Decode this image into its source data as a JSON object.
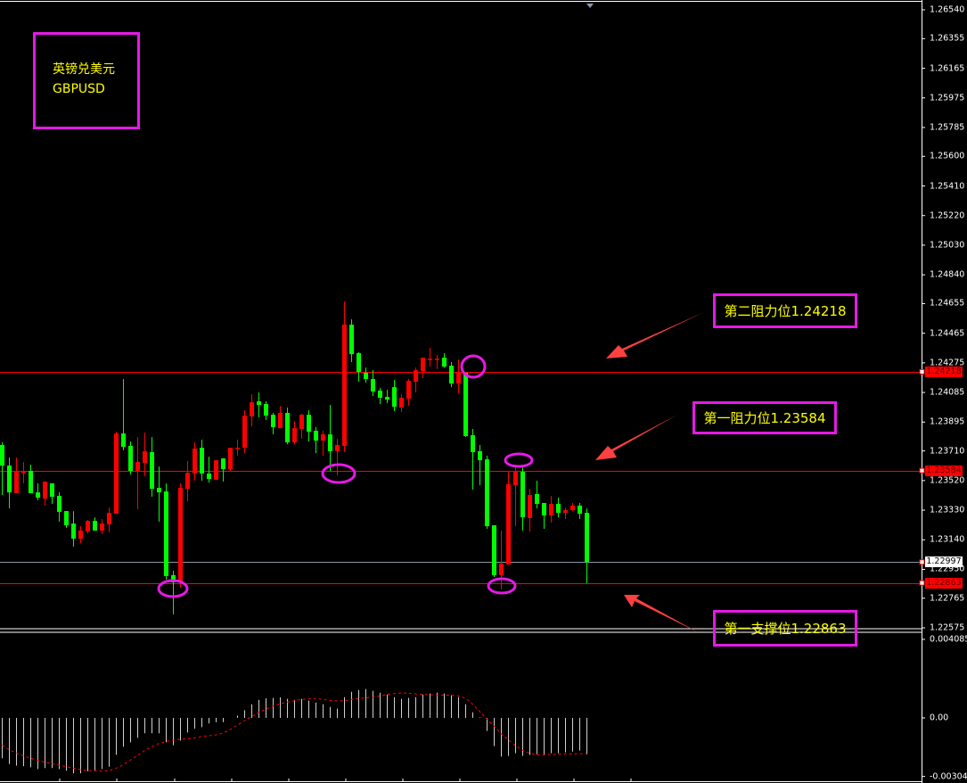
{
  "title_box": {
    "name_cn": "英镑兑美元",
    "symbol": "GBPUSD"
  },
  "annotations": [
    {
      "text": "第二阻力位1.24218",
      "level": 1.24218
    },
    {
      "text": "第一阻力位1.23584",
      "level": 1.23584
    },
    {
      "text": "第一支撑位1.22863",
      "level": 1.22863
    }
  ],
  "price_tags": [
    {
      "text": "1.24218",
      "value": 1.24218,
      "bg": "#ff0000",
      "fg": "#5a0000"
    },
    {
      "text": "1.23584",
      "value": 1.23584,
      "bg": "#ff0000",
      "fg": "#5a0000"
    },
    {
      "text": "1.22997",
      "value": 1.22997,
      "bg": "#ffffff",
      "fg": "#000000"
    },
    {
      "text": "1.22863",
      "value": 1.22863,
      "bg": "#ff0000",
      "fg": "#5a0000"
    }
  ],
  "colors": {
    "bull": "#ff0000",
    "bear": "#00ff00",
    "annotation_border": "#e619e6",
    "annotation_text": "#ffff00",
    "arrow": "#ff4040",
    "macd_bar": "#d0d0d0",
    "signal": "#ff0000"
  },
  "chart_data": [
    {
      "type": "candlestick",
      "symbol": "GBPUSD",
      "y_ticks": [
        "1.26540",
        "1.26355",
        "1.26165",
        "1.25975",
        "1.25785",
        "1.25600",
        "1.25410",
        "1.25220",
        "1.25030",
        "1.24840",
        "1.24655",
        "1.24465",
        "1.24275",
        "1.24085",
        "1.23895",
        "1.23710",
        "1.23520",
        "1.23330",
        "1.23140",
        "1.22950",
        "1.22765",
        "1.22575"
      ],
      "ylim": [
        1.22575,
        1.2654
      ],
      "horizontal_lines": [
        1.24218,
        1.23584,
        1.22997,
        1.22863
      ],
      "candles_ohlc": [
        [
          1.23748,
          1.23765,
          1.23427,
          1.23616
        ],
        [
          1.23616,
          1.23668,
          1.23341,
          1.23444
        ],
        [
          1.23439,
          1.23668,
          1.23439,
          1.23582
        ],
        [
          1.23576,
          1.23639,
          1.23502,
          1.23576
        ],
        [
          1.23582,
          1.23622,
          1.23439,
          1.23439
        ],
        [
          1.23444,
          1.23502,
          1.23393,
          1.2341
        ],
        [
          1.23404,
          1.23513,
          1.23359,
          1.23513
        ],
        [
          1.23502,
          1.23502,
          1.2337,
          1.23416
        ],
        [
          1.23422,
          1.23444,
          1.23256,
          1.23319
        ],
        [
          1.23324,
          1.23324,
          1.23216,
          1.23233
        ],
        [
          1.23244,
          1.23324,
          1.23096,
          1.23147
        ],
        [
          1.23147,
          1.23227,
          1.23118,
          1.23199
        ],
        [
          1.23193,
          1.23267,
          1.23181,
          1.23261
        ],
        [
          1.23261,
          1.23284,
          1.23199,
          1.23199
        ],
        [
          1.23199,
          1.23273,
          1.23176,
          1.23244
        ],
        [
          1.23239,
          1.23347,
          1.23187,
          1.23313
        ],
        [
          1.23307,
          1.23833,
          1.23307,
          1.23822
        ],
        [
          1.23822,
          1.24171,
          1.23713,
          1.23736
        ],
        [
          1.23742,
          1.23771,
          1.23559,
          1.23582
        ],
        [
          1.23582,
          1.23799,
          1.23336,
          1.23639
        ],
        [
          1.23633,
          1.23828,
          1.23547,
          1.23708
        ],
        [
          1.23702,
          1.23799,
          1.23416,
          1.23467
        ],
        [
          1.23473,
          1.2361,
          1.23256,
          1.23444
        ],
        [
          1.2345,
          1.23502,
          1.22884,
          1.22907
        ],
        [
          1.22913,
          1.22941,
          1.22661,
          1.22867
        ],
        [
          1.22867,
          1.23502,
          1.22832,
          1.23473
        ],
        [
          1.23467,
          1.23645,
          1.23387,
          1.2357
        ],
        [
          1.23565,
          1.23765,
          1.23519,
          1.23725
        ],
        [
          1.2373,
          1.23782,
          1.23519,
          1.23565
        ],
        [
          1.23565,
          1.23673,
          1.23507,
          1.2353
        ],
        [
          1.23525,
          1.2365,
          1.23525,
          1.2365
        ],
        [
          1.23662,
          1.23662,
          1.23513,
          1.23593
        ],
        [
          1.23593,
          1.2373,
          1.23576,
          1.2373
        ],
        [
          1.2373,
          1.23782,
          1.23679,
          1.2373
        ],
        [
          1.2373,
          1.23971,
          1.23696,
          1.23936
        ],
        [
          1.23931,
          1.24074,
          1.23868,
          1.24022
        ],
        [
          1.24028,
          1.24085,
          1.23925,
          1.24005
        ],
        [
          1.24011,
          1.24028,
          1.23908,
          1.23936
        ],
        [
          1.23942,
          1.23954,
          1.23816,
          1.23862
        ],
        [
          1.23856,
          1.23999,
          1.23856,
          1.23954
        ],
        [
          1.23954,
          1.23988,
          1.23753,
          1.23765
        ],
        [
          1.23765,
          1.23902,
          1.23753,
          1.23856
        ],
        [
          1.23851,
          1.23948,
          1.23788,
          1.23942
        ],
        [
          1.23942,
          1.23971,
          1.23771,
          1.23833
        ],
        [
          1.23839,
          1.23862,
          1.23696,
          1.23776
        ],
        [
          1.23776,
          1.23839,
          1.23679,
          1.23816
        ],
        [
          1.23816,
          1.24005,
          1.23582,
          1.23708
        ],
        [
          1.23708,
          1.23788,
          1.23553,
          1.23748
        ],
        [
          1.23742,
          1.24669,
          1.23702,
          1.2452
        ],
        [
          1.2452,
          1.24554,
          1.2428,
          1.24331
        ],
        [
          1.24337,
          1.24343,
          1.24154,
          1.24217
        ],
        [
          1.24211,
          1.24245,
          1.24148,
          1.24171
        ],
        [
          1.24171,
          1.24228,
          1.24062,
          1.24091
        ],
        [
          1.24097,
          1.24114,
          1.24011,
          1.24051
        ],
        [
          1.24057,
          1.24102,
          1.24016,
          1.24039
        ],
        [
          1.24119,
          1.24165,
          1.23965,
          1.23994
        ],
        [
          1.23988,
          1.24074,
          1.23959,
          1.24051
        ],
        [
          1.24045,
          1.24171,
          1.23999,
          1.24159
        ],
        [
          1.24154,
          1.24245,
          1.24085,
          1.24228
        ],
        [
          1.24222,
          1.24308,
          1.24177,
          1.24308
        ],
        [
          1.24302,
          1.24371,
          1.24251,
          1.24302
        ],
        [
          1.24302,
          1.24325,
          1.24234,
          1.24302
        ],
        [
          1.24308,
          1.24337,
          1.24245,
          1.24251
        ],
        [
          1.24257,
          1.2428,
          1.24119,
          1.24142
        ],
        [
          1.24142,
          1.24297,
          1.24079,
          1.24217
        ],
        [
          1.24211,
          1.24211,
          1.23799,
          1.23805
        ],
        [
          1.23811,
          1.23851,
          1.23462,
          1.23702
        ],
        [
          1.23708,
          1.23748,
          1.2349,
          1.2365
        ],
        [
          1.23656,
          1.23679,
          1.2321,
          1.23227
        ],
        [
          1.23233,
          1.23233,
          1.22901,
          1.22913
        ],
        [
          1.22913,
          1.23199,
          1.22821,
          1.22987
        ],
        [
          1.22981,
          1.23576,
          1.22981,
          1.23496
        ],
        [
          1.2349,
          1.23622,
          1.23227,
          1.23576
        ],
        [
          1.23576,
          1.23605,
          1.23199,
          1.23284
        ],
        [
          1.23279,
          1.23467,
          1.23193,
          1.23427
        ],
        [
          1.23433,
          1.23519,
          1.23341,
          1.2337
        ],
        [
          1.23376,
          1.23376,
          1.2321,
          1.23296
        ],
        [
          1.23296,
          1.23422,
          1.2325,
          1.2337
        ],
        [
          1.2337,
          1.2341,
          1.23284,
          1.23313
        ],
        [
          1.23313,
          1.23347,
          1.23273,
          1.2333
        ],
        [
          1.2333,
          1.23376,
          1.23324,
          1.23359
        ],
        [
          1.23359,
          1.23376,
          1.23273,
          1.23307
        ],
        [
          1.23313,
          1.23341,
          1.22861,
          1.22998
        ]
      ],
      "marked_points": [
        {
          "candle": 24,
          "at": "low"
        },
        {
          "candle": 47,
          "at": "low"
        },
        {
          "candle": 64,
          "at": "high"
        },
        {
          "candle": 72,
          "at": "high"
        },
        {
          "candle": 70,
          "at": "low"
        }
      ]
    },
    {
      "type": "bar",
      "indicator": "MACD",
      "y_ticks": [
        "0.004085",
        "0.00",
        "-0.003046"
      ],
      "ylim": [
        -0.003046,
        0.004085
      ],
      "histogram": [
        -0.0021,
        -0.0024,
        -0.00248,
        -0.00251,
        -0.00257,
        -0.00266,
        -0.00261,
        -0.00261,
        -0.00266,
        -0.00275,
        -0.00288,
        -0.00288,
        -0.00278,
        -0.00275,
        -0.00266,
        -0.00254,
        -0.00192,
        -0.0015,
        -0.00127,
        -0.00104,
        -0.0008,
        -0.0008,
        -0.0008,
        -0.00127,
        -0.00142,
        -0.00118,
        -0.00076,
        -0.00056,
        -0.00048,
        -0.00029,
        -0.00022,
        -0.00022,
        0,
        0.00012,
        0.0004,
        0.00071,
        0.00094,
        0.00102,
        0.00104,
        0.00107,
        0.00099,
        0.00094,
        0.00099,
        0.0009,
        0.0008,
        0.00071,
        0.00057,
        0.00048,
        0.00108,
        0.00136,
        0.00145,
        0.0015,
        0.00141,
        0.00131,
        0.00122,
        0.00108,
        0.00099,
        0.00104,
        0.00108,
        0.00122,
        0.00127,
        0.00131,
        0.00127,
        0.00118,
        0.00108,
        0.00071,
        0.00029,
        3e-05,
        -0.00068,
        -0.00147,
        -0.00201,
        -0.00198,
        -0.00184,
        -0.00198,
        -0.00193,
        -0.00189,
        -0.00193,
        -0.00184,
        -0.00184,
        -0.00179,
        -0.00175,
        -0.0017,
        -0.00189
      ],
      "signal": [
        -0.00142,
        -0.00166,
        -0.00183,
        -0.00198,
        -0.0021,
        -0.0022,
        -0.00231,
        -0.00238,
        -0.00246,
        -0.00254,
        -0.00261,
        -0.00269,
        -0.00274,
        -0.00275,
        -0.00277,
        -0.00274,
        -0.00261,
        -0.00243,
        -0.00218,
        -0.00195,
        -0.00169,
        -0.00149,
        -0.00133,
        -0.00122,
        -0.00116,
        -0.00111,
        -0.00108,
        -0.00104,
        -0.00096,
        -0.00093,
        -0.00088,
        -0.00079,
        -0.0006,
        -0.00037,
        -0.00014,
        9e-05,
        0.00028,
        0.00046,
        0.00062,
        0.00074,
        0.00082,
        0.0009,
        0.00096,
        0.00099,
        0.00101,
        0.00096,
        0.00091,
        0.00088,
        0.0009,
        0.00096,
        0.00101,
        0.00104,
        0.00108,
        0.00114,
        0.00122,
        0.00127,
        0.0013,
        0.00128,
        0.00125,
        0.00122,
        0.00121,
        0.00119,
        0.00119,
        0.00118,
        0.00114,
        0.00102,
        0.00071,
        0.00032,
        -6e-05,
        -0.00045,
        -0.00084,
        -0.00114,
        -0.00145,
        -0.00169,
        -0.00184,
        -0.00192,
        -0.00192,
        -0.0019,
        -0.00189,
        -0.00187,
        -0.00187,
        -0.00186,
        -0.00186
      ]
    }
  ]
}
